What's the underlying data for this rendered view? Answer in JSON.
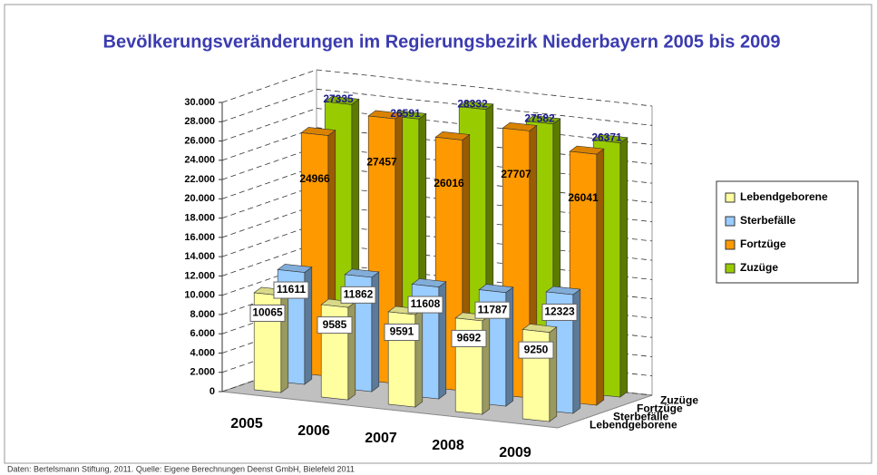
{
  "chart_data": {
    "type": "bar3d",
    "title": "Bevölkerungsveränderungen im Regierungsbezirk Niederbayern 2005 bis 2009",
    "categories": [
      "2005",
      "2006",
      "2007",
      "2008",
      "2009"
    ],
    "series": [
      {
        "name": "Lebendgeborene",
        "color": "#ffffa0",
        "values": [
          10065,
          9585,
          9591,
          9692,
          9250
        ]
      },
      {
        "name": "Sterbefälle",
        "color": "#99ccff",
        "values": [
          11611,
          11862,
          11608,
          11787,
          12323
        ]
      },
      {
        "name": "Fortzüge",
        "color": "#ff9900",
        "values": [
          24966,
          27457,
          26016,
          27707,
          26041
        ]
      },
      {
        "name": "Zuzüge",
        "color": "#99cc00",
        "values": [
          27335,
          26591,
          28332,
          27582,
          26371
        ]
      }
    ],
    "ylim": [
      0,
      30000
    ],
    "yticks": [
      0,
      {
        "value": 2000,
        "label": "2.000"
      },
      {
        "value": 4000,
        "label": "4.000"
      },
      {
        "value": 6000,
        "label": "6.000"
      },
      {
        "value": 8000,
        "label": "8.000"
      },
      {
        "value": 10000,
        "label": "10.000"
      },
      {
        "value": 12000,
        "label": "12.000"
      },
      {
        "value": 14000,
        "label": "14.000"
      },
      {
        "value": 16000,
        "label": "16.000"
      },
      {
        "value": 18000,
        "label": "18.000"
      },
      {
        "value": 20000,
        "label": "20.000"
      },
      {
        "value": 22000,
        "label": "22.000"
      },
      {
        "value": 24000,
        "label": "24.000"
      },
      {
        "value": 26000,
        "label": "26.000"
      },
      {
        "value": 28000,
        "label": "28.000"
      },
      {
        "value": 30000,
        "label": "30.000"
      }
    ],
    "grid": true,
    "legend": "right",
    "footnote": "Daten: Bertelsmann Stiftung, 2011.    Quelle: Eigene Berechnungen Deenst GmbH, Bielefeld 2011"
  }
}
